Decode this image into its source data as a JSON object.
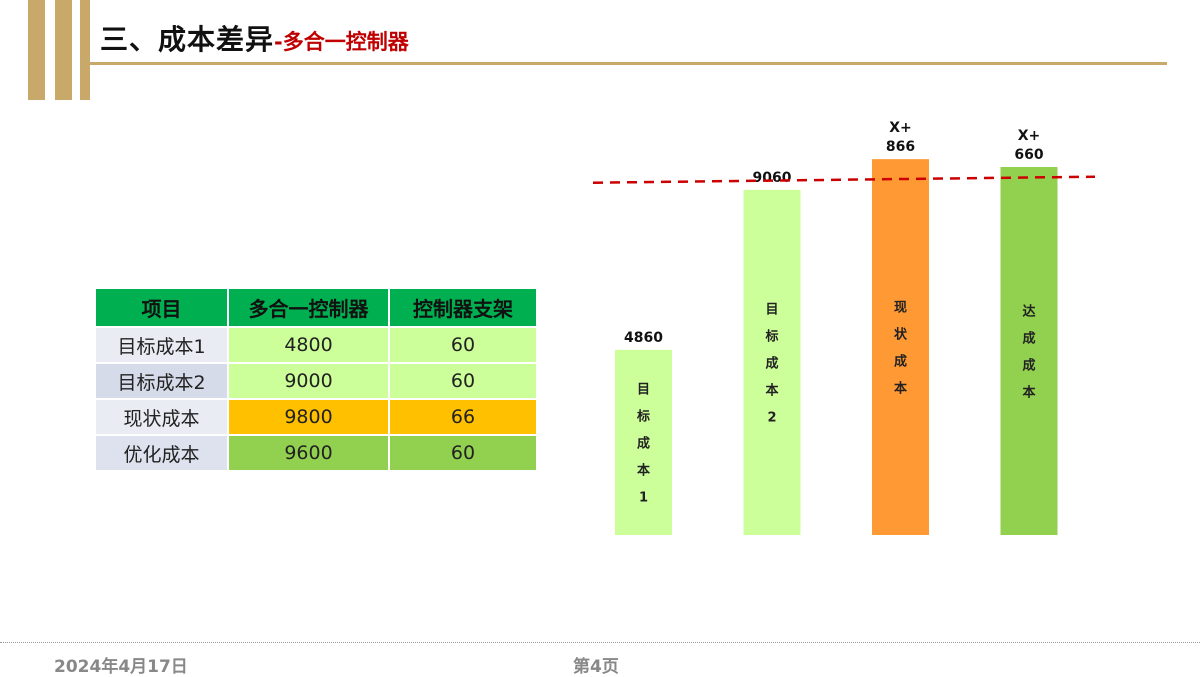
{
  "header": {
    "title_main": "三、成本差异",
    "title_sub": "-多合一控制器"
  },
  "table": {
    "headers": [
      "项目",
      "多合一控制器",
      "控制器支架"
    ],
    "rows": [
      {
        "label": "目标成本1",
        "controller": "4800",
        "bracket": "60"
      },
      {
        "label": "目标成本2",
        "controller": "9000",
        "bracket": "60"
      },
      {
        "label": "现状成本",
        "controller": "9800",
        "bracket": "66"
      },
      {
        "label": "优化成本",
        "controller": "9600",
        "bracket": "60"
      }
    ]
  },
  "chart_data": {
    "type": "bar",
    "categories": [
      "目标成本1",
      "目标成本2",
      "现状成本",
      "达成成本"
    ],
    "values": [
      4860,
      9060,
      9866,
      9660
    ],
    "data_labels": [
      [
        "4860"
      ],
      [
        "9060"
      ],
      [
        "X+",
        "866"
      ],
      [
        "X+",
        "660"
      ]
    ],
    "bar_colors": [
      "#ccff99",
      "#ccff99",
      "#ff9933",
      "#92d050"
    ],
    "reference_line": {
      "value": 9300,
      "style": "dashed",
      "color": "#cc0000"
    },
    "ylim": [
      0,
      10500
    ],
    "title": "",
    "xlabel": "",
    "ylabel": ""
  },
  "footer": {
    "date": "2024年4月17日",
    "page": "第4页"
  }
}
